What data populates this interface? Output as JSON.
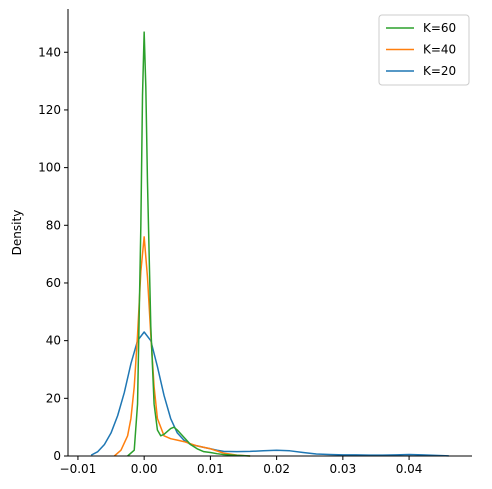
{
  "chart_data": {
    "type": "line",
    "title": "",
    "xlabel": "",
    "ylabel": "Density",
    "xlim": [
      -0.0115,
      0.0495
    ],
    "ylim": [
      0,
      155
    ],
    "xticks": [
      -0.01,
      0.0,
      0.01,
      0.02,
      0.03,
      0.04
    ],
    "xtick_labels": [
      "−0.01",
      "0.00",
      "0.01",
      "0.02",
      "0.03",
      "0.04"
    ],
    "yticks": [
      0,
      20,
      40,
      60,
      80,
      100,
      120,
      140
    ],
    "ytick_labels": [
      "0",
      "20",
      "40",
      "60",
      "80",
      "100",
      "120",
      "140"
    ],
    "grid": false,
    "legend_position": "top-right",
    "series": [
      {
        "name": "K=60",
        "color": "#2ca02c",
        "x": [
          -0.0025,
          -0.0015,
          -0.001,
          -0.0005,
          -0.00025,
          0.0,
          0.00025,
          0.0005,
          0.001,
          0.0015,
          0.002,
          0.0025,
          0.003,
          0.0035,
          0.004,
          0.0045,
          0.005,
          0.006,
          0.007,
          0.008,
          0.009,
          0.01,
          0.011,
          0.012,
          0.014,
          0.016
        ],
        "y": [
          0,
          2,
          18,
          80,
          125,
          147,
          128,
          95,
          45,
          18,
          9,
          7,
          7.5,
          8.5,
          9.5,
          10,
          9,
          6.5,
          4,
          2.5,
          1.5,
          1.2,
          0.8,
          0.5,
          0.2,
          0
        ]
      },
      {
        "name": "K=40",
        "color": "#ff7f0e",
        "x": [
          -0.0045,
          -0.0035,
          -0.0025,
          -0.002,
          -0.0015,
          -0.001,
          -0.0005,
          0.0,
          0.0005,
          0.001,
          0.0015,
          0.002,
          0.003,
          0.004,
          0.005,
          0.006,
          0.008,
          0.01,
          0.012,
          0.014,
          0.016
        ],
        "y": [
          0,
          2,
          7,
          13,
          24,
          42,
          64,
          76,
          62,
          42,
          24,
          13,
          7,
          6,
          5.5,
          5,
          3.5,
          2.5,
          1,
          0.3,
          0
        ]
      },
      {
        "name": "K=20",
        "color": "#1f77b4",
        "x": [
          -0.008,
          -0.007,
          -0.006,
          -0.005,
          -0.004,
          -0.003,
          -0.002,
          -0.001,
          0.0,
          0.001,
          0.002,
          0.003,
          0.004,
          0.005,
          0.006,
          0.007,
          0.008,
          0.009,
          0.01,
          0.011,
          0.012,
          0.014,
          0.016,
          0.018,
          0.02,
          0.022,
          0.024,
          0.026,
          0.028,
          0.03,
          0.032,
          0.034,
          0.036,
          0.038,
          0.04,
          0.042,
          0.044,
          0.046
        ],
        "y": [
          0.3,
          1.5,
          4,
          8,
          14,
          22,
          32,
          40,
          43,
          40,
          31,
          21,
          13,
          8,
          5.5,
          4,
          3.5,
          3,
          2.5,
          2,
          1.6,
          1.5,
          1.6,
          1.8,
          2,
          1.8,
          1.2,
          0.7,
          0.5,
          0.4,
          0.4,
          0.3,
          0.3,
          0.4,
          0.5,
          0.4,
          0.2,
          0.05
        ]
      }
    ]
  }
}
